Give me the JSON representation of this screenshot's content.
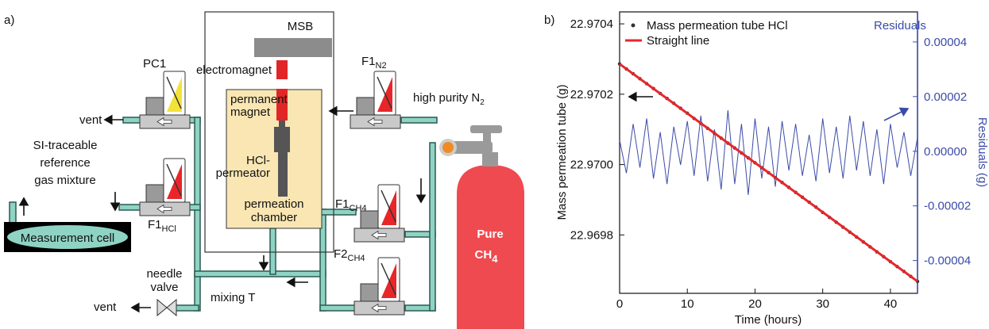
{
  "panel_a": {
    "label": "a)",
    "msb": "MSB",
    "electromagnet": "electromagnet",
    "permanent_magnet": [
      "permanent",
      "magnet"
    ],
    "permeator": [
      "HCl-",
      "permeator"
    ],
    "chamber": [
      "permeation",
      "chamber"
    ],
    "pc1": "PC1",
    "f1_n2": {
      "main": "F1",
      "sub": "N2"
    },
    "high_purity": {
      "main": "high purity N",
      "sub": "2"
    },
    "vent_top": "vent",
    "reference": [
      "SI-traceable",
      "reference",
      "gas mixture"
    ],
    "f1_hcl": {
      "main": "F1",
      "sub": "HCl"
    },
    "measurement_cell": "Measurement cell",
    "f1_ch4": {
      "main": "F1",
      "sub": "CH4"
    },
    "f2_ch4": {
      "main": "F2",
      "sub": "CH4"
    },
    "needle_valve": [
      "needle",
      "valve"
    ],
    "vent_bottom": "vent",
    "mixing_t": "mixing T",
    "cylinder": {
      "line1": "Pure",
      "main": "CH",
      "sub": "4"
    }
  },
  "chart_data": {
    "type": "line",
    "panel_label": "b)",
    "x_label": "Time (hours)",
    "y_label": "Mass permeation tube (g)",
    "y2_label": "Residuals (g)",
    "xlim": [
      0,
      44
    ],
    "xticks": [
      0,
      10,
      20,
      30,
      40
    ],
    "ylim": [
      22.969634,
      22.970434
    ],
    "yticks": [
      22.9698,
      {
        "value": 22.97,
        "label": "22.9700"
      },
      22.9702,
      22.9704
    ],
    "y2lim": [
      -5.2e-05,
      5.1e-05
    ],
    "y2ticks": [
      -4e-05,
      -2e-05,
      {
        "value": 0,
        "label": "0.00000"
      },
      2e-05,
      4e-05
    ],
    "series": [
      {
        "name": "Mass permeation tube HCl",
        "color": "#333333",
        "style": "points",
        "x": [
          0,
          1,
          2,
          3,
          4,
          5,
          6,
          7,
          8,
          9,
          10,
          11,
          12,
          13,
          14,
          15,
          16,
          17,
          18,
          19,
          20,
          21,
          22,
          23,
          24,
          25,
          26,
          27,
          28,
          29,
          30,
          31,
          32,
          33,
          34,
          35,
          36,
          37,
          38,
          39,
          40,
          41,
          42,
          43,
          44
        ],
        "values": [
          22.970286,
          22.970272,
          22.970258,
          22.970244,
          22.97023,
          22.970216,
          22.970202,
          22.970188,
          22.970174,
          22.97016,
          22.970146,
          22.970131,
          22.970117,
          22.970103,
          22.970089,
          22.970075,
          22.970061,
          22.970047,
          22.970033,
          22.970019,
          22.970005,
          22.969991,
          22.969977,
          22.969963,
          22.969949,
          22.969935,
          22.969921,
          22.969907,
          22.969893,
          22.969879,
          22.969864,
          22.96985,
          22.969836,
          22.969822,
          22.969808,
          22.969794,
          22.96978,
          22.969766,
          22.969752,
          22.969738,
          22.969724,
          22.96971,
          22.969696,
          22.969682,
          22.969668
        ]
      },
      {
        "name": "Straight line",
        "color": "#e8262a",
        "style": "line",
        "x": [
          0,
          44
        ],
        "values": [
          22.970286,
          22.969668
        ]
      },
      {
        "name": "Residuals",
        "color": "#3b4ba8",
        "style": "line",
        "axis": "y2",
        "x": [
          0,
          1,
          2,
          3,
          4,
          5,
          6,
          7,
          8,
          9,
          10,
          11,
          12,
          13,
          14,
          15,
          16,
          17,
          18,
          19,
          20,
          21,
          22,
          23,
          24,
          25,
          26,
          27,
          28,
          29,
          30,
          31,
          32,
          33,
          34,
          35,
          36,
          37,
          38,
          39,
          40,
          41,
          42,
          43,
          44
        ],
        "values": [
          4e-06,
          -8e-06,
          1e-05,
          -6e-06,
          1.2e-05,
          -1e-05,
          7e-06,
          -1.2e-05,
          9e-06,
          -5e-06,
          1.1e-05,
          -9e-06,
          1.3e-05,
          -1.1e-05,
          8e-06,
          -1.4e-05,
          1.5e-05,
          -1.2e-05,
          1e-05,
          -1.6e-05,
          1.2e-05,
          -1e-05,
          9e-06,
          -1.3e-05,
          1.1e-05,
          -7e-06,
          1e-05,
          -9e-06,
          6e-06,
          -1.1e-05,
          1.2e-05,
          -8e-06,
          9e-06,
          -1e-05,
          1.3e-05,
          -7e-06,
          1.1e-05,
          -9e-06,
          8e-06,
          -1.2e-05,
          1e-05,
          -6e-06,
          7e-06,
          -9e-06,
          5e-06
        ]
      }
    ]
  }
}
